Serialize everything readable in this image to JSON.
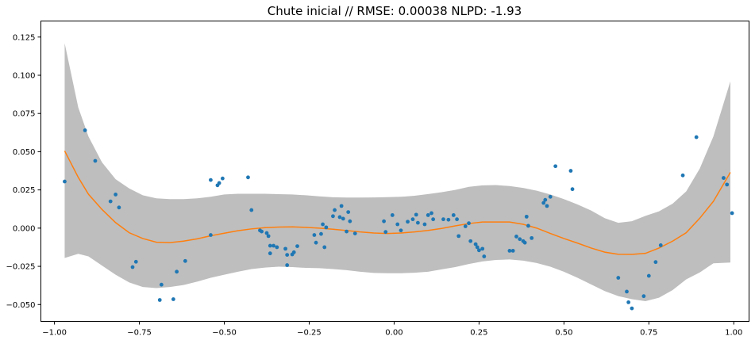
{
  "chart_data": {
    "type": "scatter",
    "title": "Chute inicial // RMSE: 0.00038 NLPD: -1.93",
    "xlabel": "",
    "ylabel": "",
    "xlim": [
      -1.04,
      1.045
    ],
    "ylim": [
      -0.061,
      0.1355
    ],
    "x_ticks": [
      -1.0,
      -0.75,
      -0.5,
      -0.25,
      0.0,
      0.25,
      0.5,
      0.75,
      1.0
    ],
    "x_tick_labels": [
      "−1.00",
      "−0.75",
      "−0.50",
      "−0.25",
      "0.00",
      "0.25",
      "0.50",
      "0.75",
      "1.00"
    ],
    "y_ticks": [
      -0.05,
      -0.025,
      0.0,
      0.025,
      0.05,
      0.075,
      0.1,
      0.125
    ],
    "y_tick_labels": [
      "−0.050",
      "−0.025",
      "0.000",
      "0.025",
      "0.050",
      "0.075",
      "0.100",
      "0.125"
    ],
    "grid": false,
    "colors": {
      "points": "#1f77b4",
      "mean": "#ff7f0e",
      "band": "#bebebe"
    },
    "band": {
      "x": [
        -0.97,
        -0.93,
        -0.9,
        -0.86,
        -0.82,
        -0.78,
        -0.74,
        -0.7,
        -0.66,
        -0.62,
        -0.58,
        -0.54,
        -0.5,
        -0.46,
        -0.42,
        -0.38,
        -0.34,
        -0.3,
        -0.26,
        -0.22,
        -0.18,
        -0.14,
        -0.1,
        -0.06,
        -0.02,
        0.02,
        0.06,
        0.1,
        0.14,
        0.18,
        0.22,
        0.26,
        0.3,
        0.34,
        0.38,
        0.42,
        0.46,
        0.5,
        0.54,
        0.58,
        0.62,
        0.66,
        0.7,
        0.74,
        0.78,
        0.82,
        0.86,
        0.9,
        0.94,
        0.99
      ],
      "upper": [
        0.121,
        0.079,
        0.06,
        0.043,
        0.032,
        0.026,
        0.0215,
        0.0195,
        0.019,
        0.019,
        0.0195,
        0.0205,
        0.022,
        0.0225,
        0.0225,
        0.0225,
        0.0222,
        0.022,
        0.0215,
        0.0208,
        0.0202,
        0.02,
        0.02,
        0.0201,
        0.0203,
        0.0205,
        0.0212,
        0.0223,
        0.0235,
        0.025,
        0.027,
        0.028,
        0.0282,
        0.0275,
        0.0263,
        0.0245,
        0.022,
        0.019,
        0.0155,
        0.0115,
        0.0065,
        0.0035,
        0.0045,
        0.008,
        0.011,
        0.016,
        0.024,
        0.039,
        0.06,
        0.096
      ],
      "lower": [
        -0.0195,
        -0.0168,
        -0.0185,
        -0.0245,
        -0.0305,
        -0.0355,
        -0.0385,
        -0.0392,
        -0.0385,
        -0.0372,
        -0.035,
        -0.0325,
        -0.0305,
        -0.0285,
        -0.0268,
        -0.0258,
        -0.0252,
        -0.0255,
        -0.026,
        -0.0262,
        -0.0268,
        -0.0275,
        -0.0285,
        -0.0293,
        -0.0295,
        -0.0295,
        -0.0292,
        -0.0285,
        -0.027,
        -0.0255,
        -0.0235,
        -0.0218,
        -0.0208,
        -0.0205,
        -0.0213,
        -0.0228,
        -0.0252,
        -0.0285,
        -0.0325,
        -0.0368,
        -0.0412,
        -0.0445,
        -0.0465,
        -0.0478,
        -0.0455,
        -0.0405,
        -0.0335,
        -0.029,
        -0.023,
        -0.0225
      ]
    },
    "mean": {
      "x": [
        -0.97,
        -0.93,
        -0.9,
        -0.86,
        -0.82,
        -0.78,
        -0.74,
        -0.7,
        -0.66,
        -0.62,
        -0.58,
        -0.54,
        -0.5,
        -0.46,
        -0.42,
        -0.38,
        -0.34,
        -0.3,
        -0.26,
        -0.22,
        -0.18,
        -0.14,
        -0.1,
        -0.06,
        -0.02,
        0.02,
        0.06,
        0.1,
        0.14,
        0.18,
        0.22,
        0.26,
        0.3,
        0.34,
        0.38,
        0.42,
        0.46,
        0.5,
        0.54,
        0.58,
        0.62,
        0.66,
        0.7,
        0.74,
        0.78,
        0.82,
        0.86,
        0.9,
        0.94,
        0.99
      ],
      "y": [
        0.0505,
        0.0332,
        0.0222,
        0.0122,
        0.0036,
        -0.003,
        -0.0068,
        -0.0092,
        -0.0095,
        -0.0085,
        -0.007,
        -0.005,
        -0.0033,
        -0.0017,
        -0.0005,
        0.0003,
        0.0007,
        0.0008,
        0.0005,
        0.0,
        -0.0007,
        -0.0016,
        -0.0025,
        -0.0032,
        -0.0035,
        -0.0032,
        -0.0025,
        -0.0015,
        -0.0002,
        0.0015,
        0.003,
        0.004,
        0.004,
        0.004,
        0.0025,
        0.0,
        -0.0035,
        -0.0068,
        -0.0098,
        -0.013,
        -0.0157,
        -0.0171,
        -0.0172,
        -0.0165,
        -0.013,
        -0.0085,
        -0.003,
        0.0065,
        0.0175,
        0.0365
      ]
    },
    "points": {
      "x": [
        -0.97,
        -0.91,
        -0.88,
        -0.835,
        -0.82,
        -0.81,
        -0.77,
        -0.76,
        -0.69,
        -0.685,
        -0.65,
        -0.64,
        -0.615,
        -0.54,
        -0.54,
        -0.52,
        -0.515,
        -0.505,
        -0.43,
        -0.42,
        -0.395,
        -0.39,
        -0.375,
        -0.37,
        -0.365,
        -0.365,
        -0.355,
        -0.345,
        -0.32,
        -0.315,
        -0.315,
        -0.3,
        -0.295,
        -0.285,
        -0.235,
        -0.23,
        -0.215,
        -0.21,
        -0.205,
        -0.2,
        -0.18,
        -0.175,
        -0.16,
        -0.155,
        -0.15,
        -0.14,
        -0.135,
        -0.13,
        -0.115,
        -0.03,
        -0.025,
        -0.005,
        0.01,
        0.02,
        0.04,
        0.055,
        0.065,
        0.07,
        0.09,
        0.1,
        0.11,
        0.115,
        0.145,
        0.16,
        0.175,
        0.185,
        0.19,
        0.21,
        0.22,
        0.225,
        0.24,
        0.245,
        0.25,
        0.26,
        0.265,
        0.34,
        0.35,
        0.36,
        0.37,
        0.38,
        0.385,
        0.39,
        0.395,
        0.405,
        0.44,
        0.445,
        0.45,
        0.46,
        0.475,
        0.52,
        0.525,
        0.66,
        0.685,
        0.69,
        0.7,
        0.735,
        0.75,
        0.77,
        0.785,
        0.85,
        0.89,
        0.97,
        0.98,
        0.995
      ],
      "y": [
        0.0305,
        0.064,
        0.044,
        0.0175,
        0.022,
        0.0135,
        -0.0255,
        -0.022,
        -0.047,
        -0.037,
        -0.0465,
        -0.0285,
        -0.0215,
        -0.0045,
        0.0315,
        0.028,
        0.0295,
        0.0325,
        0.0332,
        0.0118,
        -0.0015,
        -0.0022,
        -0.0032,
        -0.0052,
        -0.0115,
        -0.0165,
        -0.0115,
        -0.0125,
        -0.0135,
        -0.0175,
        -0.0242,
        -0.0172,
        -0.0158,
        -0.0118,
        -0.0045,
        -0.0095,
        -0.0038,
        0.0025,
        -0.0125,
        0.0005,
        0.0078,
        0.0118,
        0.0072,
        0.0145,
        0.0062,
        -0.0022,
        0.0105,
        0.0045,
        -0.0035,
        0.0045,
        -0.0025,
        0.0085,
        0.0025,
        -0.0015,
        0.0042,
        0.0058,
        0.0088,
        0.0035,
        0.0025,
        0.0085,
        0.0098,
        0.0058,
        0.0058,
        0.0055,
        0.0085,
        0.0058,
        -0.0052,
        0.0012,
        0.0032,
        -0.0085,
        -0.0105,
        -0.0125,
        -0.0145,
        -0.0135,
        -0.0185,
        -0.0148,
        -0.0148,
        -0.0055,
        -0.0072,
        -0.0085,
        -0.0095,
        0.0075,
        0.0015,
        -0.0065,
        0.0165,
        0.0185,
        0.0145,
        0.0205,
        0.0405,
        0.0375,
        0.0255,
        -0.0325,
        -0.0415,
        -0.0485,
        -0.0525,
        -0.0445,
        -0.0312,
        -0.0222,
        -0.0112,
        0.0345,
        0.0595,
        0.0328,
        0.0285,
        0.0098
      ]
    }
  }
}
